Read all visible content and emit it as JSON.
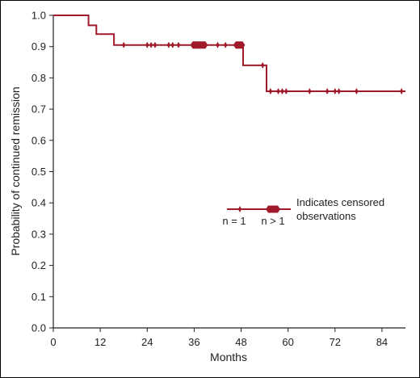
{
  "chart_data": {
    "type": "line",
    "xlabel": "Months",
    "ylabel": "Probability of continued remission",
    "xlim": [
      0,
      90
    ],
    "ylim": [
      0,
      1.0
    ],
    "x_ticks": [
      0,
      12,
      24,
      36,
      48,
      60,
      72,
      84
    ],
    "y_ticks": [
      0.0,
      0.1,
      0.2,
      0.3,
      0.4,
      0.5,
      0.6,
      0.7,
      0.8,
      0.9,
      1.0
    ],
    "y_tick_labels": [
      "0.0",
      "0.1",
      "0.2",
      "0.3",
      "0.4",
      "0.5",
      "0.6",
      "0.7",
      "0.8",
      "0.9",
      "1.0"
    ],
    "grid": false,
    "series": [
      {
        "steps": [
          [
            0,
            1.0
          ],
          [
            9,
            1.0
          ],
          [
            9,
            0.968
          ],
          [
            11,
            0.968
          ],
          [
            11,
            0.94
          ],
          [
            15.5,
            0.94
          ],
          [
            15.5,
            0.905
          ],
          [
            48.5,
            0.905
          ],
          [
            48.5,
            0.84
          ],
          [
            54.5,
            0.84
          ],
          [
            54.5,
            0.757
          ],
          [
            90,
            0.757
          ]
        ],
        "censored_single": [
          [
            18,
            0.905
          ],
          [
            24,
            0.905
          ],
          [
            25,
            0.905
          ],
          [
            26,
            0.905
          ],
          [
            29.5,
            0.905
          ],
          [
            30.5,
            0.905
          ],
          [
            32,
            0.905
          ],
          [
            42,
            0.905
          ],
          [
            44,
            0.905
          ],
          [
            53.5,
            0.84
          ],
          [
            55.5,
            0.757
          ],
          [
            57.5,
            0.757
          ],
          [
            58.5,
            0.757
          ],
          [
            59.5,
            0.757
          ],
          [
            65.5,
            0.757
          ],
          [
            70,
            0.757
          ],
          [
            72,
            0.757
          ],
          [
            73,
            0.757
          ],
          [
            77.5,
            0.757
          ],
          [
            89,
            0.757
          ]
        ],
        "censored_multi": [
          [
            35,
            39.5,
            0.905
          ],
          [
            46,
            49,
            0.905
          ]
        ]
      }
    ],
    "legend": {
      "placement": "center-right",
      "text_line1": "Indicates censored",
      "text_line2": "observations",
      "single_label": "n = 1",
      "multi_label": "n > 1"
    },
    "colors": {
      "line": "#a01a2c",
      "axis": "#222222"
    }
  }
}
